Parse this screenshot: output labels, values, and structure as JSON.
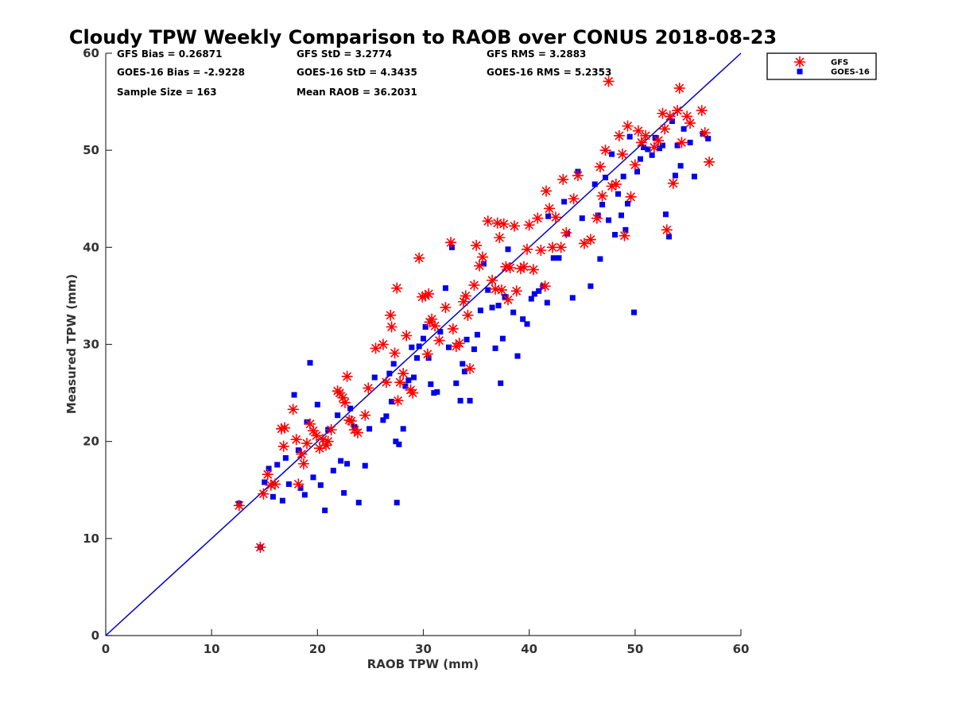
{
  "chart_data": {
    "type": "scatter",
    "title": "Cloudy TPW Weekly Comparison to RAOB over CONUS 2018-08-23",
    "xlabel": "RAOB TPW (mm)",
    "ylabel": "Measured TPW (mm)",
    "xlim": [
      0,
      60
    ],
    "ylim": [
      0,
      60
    ],
    "xticks": [
      "0",
      "10",
      "20",
      "30",
      "40",
      "50",
      "60"
    ],
    "yticks": [
      "0",
      "10",
      "20",
      "30",
      "40",
      "50",
      "60"
    ],
    "grid": false,
    "legend_position": "outside top-right",
    "stats": [
      [
        "GFS Bias = 0.26871",
        "GFS StD = 3.2774",
        "GFS RMS = 3.2883"
      ],
      [
        "GOES-16 Bias = -2.9228",
        "GOES-16 StD = 4.3435",
        "GOES-16 RMS = 5.2353"
      ],
      [
        "Sample Size = 163",
        "Mean RAOB = 36.2031"
      ]
    ],
    "reference_line": {
      "type": "one-to-one",
      "color": "#0000cc"
    },
    "series": [
      {
        "name": "GFS",
        "marker": "asterisk",
        "color": "#ff0000",
        "points": [
          [
            12.6,
            13.4
          ],
          [
            14.6,
            9.1
          ],
          [
            14.9,
            14.6
          ],
          [
            15.3,
            16.6
          ],
          [
            15.6,
            15.5
          ],
          [
            16.0,
            15.6
          ],
          [
            16.6,
            21.3
          ],
          [
            16.9,
            21.4
          ],
          [
            16.8,
            19.5
          ],
          [
            17.7,
            23.3
          ],
          [
            18.0,
            20.2
          ],
          [
            18.2,
            15.6
          ],
          [
            18.5,
            18.7
          ],
          [
            18.7,
            17.7
          ],
          [
            19.0,
            19.8
          ],
          [
            19.3,
            21.8
          ],
          [
            19.6,
            21.1
          ],
          [
            19.9,
            20.6
          ],
          [
            20.2,
            19.3
          ],
          [
            20.5,
            20.2
          ],
          [
            20.8,
            19.6
          ],
          [
            21.0,
            20.0
          ],
          [
            21.3,
            21.2
          ],
          [
            21.9,
            25.2
          ],
          [
            22.1,
            25.0
          ],
          [
            22.4,
            24.5
          ],
          [
            22.6,
            24.0
          ],
          [
            22.8,
            26.7
          ],
          [
            23.0,
            22.2
          ],
          [
            23.2,
            22.1
          ],
          [
            23.5,
            21.2
          ],
          [
            23.8,
            20.9
          ],
          [
            24.5,
            22.7
          ],
          [
            24.8,
            25.5
          ],
          [
            25.5,
            29.6
          ],
          [
            26.2,
            30.0
          ],
          [
            26.5,
            26.1
          ],
          [
            26.9,
            33.0
          ],
          [
            27.0,
            31.8
          ],
          [
            27.3,
            29.1
          ],
          [
            27.5,
            35.8
          ],
          [
            27.6,
            24.2
          ],
          [
            27.8,
            26.1
          ],
          [
            28.1,
            27.0
          ],
          [
            28.4,
            30.9
          ],
          [
            28.8,
            25.3
          ],
          [
            29.0,
            25.0
          ],
          [
            29.6,
            38.9
          ],
          [
            29.9,
            34.9
          ],
          [
            30.2,
            35.0
          ],
          [
            30.5,
            35.2
          ],
          [
            30.4,
            29.0
          ],
          [
            30.6,
            32.3
          ],
          [
            30.8,
            32.6
          ],
          [
            31.1,
            31.9
          ],
          [
            31.5,
            30.4
          ],
          [
            32.1,
            33.8
          ],
          [
            32.6,
            40.5
          ],
          [
            32.8,
            31.6
          ],
          [
            33.1,
            29.8
          ],
          [
            33.4,
            30.1
          ],
          [
            33.8,
            34.4
          ],
          [
            34.0,
            35.0
          ],
          [
            34.2,
            33.0
          ],
          [
            34.4,
            27.5
          ],
          [
            34.8,
            36.1
          ],
          [
            35.0,
            40.2
          ],
          [
            35.3,
            38.1
          ],
          [
            35.6,
            39.0
          ],
          [
            36.1,
            42.7
          ],
          [
            36.5,
            36.6
          ],
          [
            36.8,
            35.7
          ],
          [
            37.0,
            42.5
          ],
          [
            37.2,
            41.0
          ],
          [
            37.4,
            35.6
          ],
          [
            37.6,
            42.4
          ],
          [
            37.8,
            38.0
          ],
          [
            38.0,
            34.6
          ],
          [
            38.2,
            37.9
          ],
          [
            38.6,
            42.2
          ],
          [
            38.8,
            35.5
          ],
          [
            39.2,
            37.8
          ],
          [
            39.5,
            38.0
          ],
          [
            39.8,
            39.8
          ],
          [
            40.0,
            42.3
          ],
          [
            40.4,
            37.7
          ],
          [
            40.8,
            43.0
          ],
          [
            41.1,
            39.7
          ],
          [
            41.5,
            36.0
          ],
          [
            41.6,
            45.8
          ],
          [
            41.9,
            44.0
          ],
          [
            42.2,
            40.0
          ],
          [
            42.5,
            43.1
          ],
          [
            43.0,
            40.0
          ],
          [
            43.2,
            47.0
          ],
          [
            43.5,
            41.5
          ],
          [
            44.2,
            45.0
          ],
          [
            44.6,
            47.4
          ],
          [
            45.2,
            40.4
          ],
          [
            45.8,
            40.8
          ],
          [
            46.4,
            43.0
          ],
          [
            46.7,
            48.3
          ],
          [
            46.9,
            45.3
          ],
          [
            47.2,
            50.0
          ],
          [
            47.5,
            57.1
          ],
          [
            47.8,
            46.3
          ],
          [
            48.2,
            46.5
          ],
          [
            48.5,
            51.5
          ],
          [
            48.8,
            49.6
          ],
          [
            49.0,
            41.2
          ],
          [
            49.3,
            52.5
          ],
          [
            49.6,
            45.2
          ],
          [
            50.0,
            48.5
          ],
          [
            50.3,
            52.0
          ],
          [
            50.6,
            50.8
          ],
          [
            51.0,
            51.5
          ],
          [
            51.8,
            50.3
          ],
          [
            52.2,
            51.0
          ],
          [
            52.6,
            53.8
          ],
          [
            52.8,
            52.2
          ],
          [
            53.0,
            41.8
          ],
          [
            53.3,
            53.5
          ],
          [
            53.6,
            46.6
          ],
          [
            54.0,
            54.1
          ],
          [
            54.2,
            56.4
          ],
          [
            54.4,
            50.8
          ],
          [
            54.9,
            53.5
          ],
          [
            55.2,
            52.8
          ],
          [
            56.3,
            54.1
          ],
          [
            56.6,
            51.8
          ],
          [
            57.0,
            48.8
          ]
        ]
      },
      {
        "name": "GOES-16",
        "marker": "square",
        "color": "#0000ee",
        "points": [
          [
            12.6,
            13.6
          ],
          [
            14.6,
            9.1
          ],
          [
            15.0,
            15.8
          ],
          [
            15.4,
            17.2
          ],
          [
            15.8,
            14.3
          ],
          [
            16.2,
            17.6
          ],
          [
            16.7,
            13.9
          ],
          [
            17.0,
            18.3
          ],
          [
            17.3,
            15.6
          ],
          [
            17.8,
            24.8
          ],
          [
            18.2,
            19.1
          ],
          [
            18.4,
            15.2
          ],
          [
            18.8,
            14.5
          ],
          [
            19.0,
            22.0
          ],
          [
            19.3,
            28.1
          ],
          [
            19.6,
            16.3
          ],
          [
            20.0,
            23.8
          ],
          [
            20.3,
            15.5
          ],
          [
            20.7,
            12.9
          ],
          [
            21.0,
            21.2
          ],
          [
            21.5,
            17.0
          ],
          [
            21.9,
            22.7
          ],
          [
            22.2,
            18.0
          ],
          [
            22.5,
            14.7
          ],
          [
            22.8,
            17.7
          ],
          [
            23.1,
            23.4
          ],
          [
            23.5,
            21.5
          ],
          [
            23.9,
            13.7
          ],
          [
            24.5,
            17.5
          ],
          [
            24.9,
            21.3
          ],
          [
            25.4,
            26.6
          ],
          [
            26.2,
            22.2
          ],
          [
            26.5,
            22.6
          ],
          [
            26.8,
            27.0
          ],
          [
            27.0,
            24.1
          ],
          [
            27.2,
            28.0
          ],
          [
            27.4,
            20.0
          ],
          [
            27.5,
            13.7
          ],
          [
            27.7,
            19.7
          ],
          [
            28.1,
            21.3
          ],
          [
            28.3,
            25.7
          ],
          [
            28.6,
            26.3
          ],
          [
            28.9,
            29.7
          ],
          [
            29.1,
            26.6
          ],
          [
            29.4,
            28.6
          ],
          [
            29.6,
            29.8
          ],
          [
            30.0,
            30.6
          ],
          [
            30.2,
            31.8
          ],
          [
            30.5,
            28.6
          ],
          [
            30.7,
            25.9
          ],
          [
            31.0,
            25.0
          ],
          [
            31.3,
            25.1
          ],
          [
            31.6,
            31.3
          ],
          [
            32.1,
            35.8
          ],
          [
            32.4,
            29.7
          ],
          [
            32.7,
            40.0
          ],
          [
            33.1,
            26.0
          ],
          [
            33.5,
            24.2
          ],
          [
            33.7,
            28.0
          ],
          [
            33.9,
            27.2
          ],
          [
            34.1,
            30.5
          ],
          [
            34.4,
            24.2
          ],
          [
            34.8,
            29.5
          ],
          [
            35.1,
            31.0
          ],
          [
            35.4,
            33.5
          ],
          [
            35.7,
            38.3
          ],
          [
            36.1,
            35.6
          ],
          [
            36.5,
            33.8
          ],
          [
            36.8,
            29.6
          ],
          [
            37.1,
            34.0
          ],
          [
            37.3,
            26.0
          ],
          [
            37.5,
            30.6
          ],
          [
            37.7,
            34.9
          ],
          [
            38.0,
            39.8
          ],
          [
            38.5,
            33.3
          ],
          [
            38.9,
            28.8
          ],
          [
            39.4,
            32.6
          ],
          [
            39.8,
            32.1
          ],
          [
            40.2,
            34.7
          ],
          [
            40.5,
            35.2
          ],
          [
            40.9,
            35.5
          ],
          [
            41.3,
            36.0
          ],
          [
            41.7,
            34.3
          ],
          [
            41.8,
            43.2
          ],
          [
            42.3,
            38.9
          ],
          [
            42.8,
            38.9
          ],
          [
            43.3,
            44.7
          ],
          [
            43.6,
            41.4
          ],
          [
            44.1,
            34.8
          ],
          [
            44.6,
            47.8
          ],
          [
            45.0,
            43.0
          ],
          [
            45.8,
            36.0
          ],
          [
            46.2,
            46.5
          ],
          [
            46.5,
            43.3
          ],
          [
            46.7,
            38.8
          ],
          [
            46.9,
            44.4
          ],
          [
            47.2,
            47.2
          ],
          [
            47.5,
            42.8
          ],
          [
            47.8,
            49.6
          ],
          [
            48.1,
            41.3
          ],
          [
            48.4,
            45.5
          ],
          [
            48.7,
            43.3
          ],
          [
            48.9,
            47.3
          ],
          [
            49.1,
            41.8
          ],
          [
            49.3,
            44.5
          ],
          [
            49.5,
            51.4
          ],
          [
            49.9,
            33.3
          ],
          [
            50.2,
            47.8
          ],
          [
            50.5,
            49.1
          ],
          [
            50.8,
            50.3
          ],
          [
            51.2,
            50.1
          ],
          [
            51.6,
            49.5
          ],
          [
            51.9,
            51.3
          ],
          [
            52.3,
            50.2
          ],
          [
            52.6,
            50.5
          ],
          [
            52.9,
            43.4
          ],
          [
            53.2,
            41.1
          ],
          [
            53.5,
            53.0
          ],
          [
            53.8,
            47.4
          ],
          [
            54.0,
            50.5
          ],
          [
            54.3,
            48.4
          ],
          [
            54.6,
            52.2
          ],
          [
            55.2,
            50.8
          ],
          [
            55.6,
            47.3
          ],
          [
            56.4,
            51.7
          ],
          [
            56.9,
            51.2
          ]
        ]
      }
    ]
  }
}
